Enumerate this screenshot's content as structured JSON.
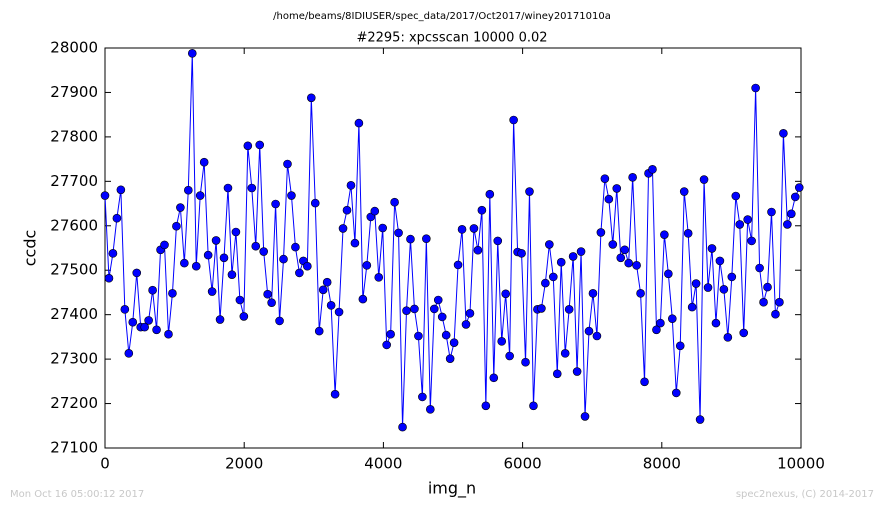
{
  "chart_data": {
    "type": "line",
    "title": "#2295: xpcsscan 10000 0.02",
    "subtitle": "/home/beams/8IDIUSER/spec_data/2017/Oct2017/winey20171010a",
    "xlabel": "img_n",
    "ylabel": "ccdc",
    "annotations": [
      "Mon Oct 16 05:00:12 2017",
      "spec2nexus, (C) 2014-2017"
    ],
    "color": "#0000ff",
    "marker_edge": "#000000",
    "xlim": [
      0,
      10000
    ],
    "xticks": [
      0,
      2000,
      4000,
      6000,
      8000,
      10000
    ],
    "ylim": [
      27100,
      28000
    ],
    "yticks": [
      27100,
      27200,
      27300,
      27400,
      27500,
      27600,
      27700,
      27800,
      27900,
      28000
    ],
    "x": [
      0,
      57,
      114,
      171,
      228,
      285,
      342,
      399,
      456,
      513,
      570,
      627,
      684,
      741,
      798,
      855,
      912,
      969,
      1026,
      1083,
      1140,
      1197,
      1254,
      1311,
      1368,
      1425,
      1482,
      1539,
      1596,
      1653,
      1710,
      1767,
      1824,
      1881,
      1938,
      1995,
      2052,
      2109,
      2166,
      2223,
      2280,
      2337,
      2394,
      2451,
      2508,
      2565,
      2622,
      2679,
      2736,
      2793,
      2850,
      2907,
      2964,
      3021,
      3078,
      3135,
      3192,
      3249,
      3306,
      3363,
      3420,
      3477,
      3534,
      3591,
      3648,
      3705,
      3762,
      3819,
      3876,
      3933,
      3990,
      4047,
      4104,
      4161,
      4218,
      4275,
      4332,
      4389,
      4446,
      4503,
      4560,
      4617,
      4674,
      4731,
      4788,
      4845,
      4902,
      4959,
      5016,
      5073,
      5130,
      5187,
      5244,
      5301,
      5358,
      5415,
      5472,
      5529,
      5586,
      5643,
      5700,
      5757,
      5814,
      5871,
      5928,
      5985,
      6042,
      6099,
      6156,
      6213,
      6270,
      6327,
      6384,
      6441,
      6498,
      6555,
      6612,
      6669,
      6726,
      6783,
      6840,
      6897,
      6954,
      7011,
      7068,
      7125,
      7182,
      7239,
      7296,
      7353,
      7410,
      7467,
      7524,
      7581,
      7638,
      7695,
      7752,
      7809,
      7866,
      7923,
      7980,
      8037,
      8094,
      8151,
      8208,
      8265,
      8322,
      8379,
      8436,
      8493,
      8550,
      8607,
      8664,
      8721,
      8778,
      8835,
      8892,
      8949,
      9006,
      9063,
      9120,
      9177,
      9234,
      9291,
      9348,
      9405,
      9462,
      9519,
      9576,
      9633,
      9690,
      9747,
      9804,
      9861,
      9918,
      9975
    ],
    "values": [
      27668,
      27482,
      27538,
      27617,
      27681,
      27412,
      27313,
      27383,
      27494,
      27372,
      27372,
      27387,
      27455,
      27366,
      27546,
      27557,
      27356,
      27448,
      27599,
      27641,
      27516,
      27680,
      27988,
      27509,
      27668,
      27743,
      27534,
      27452,
      27567,
      27389,
      27528,
      27685,
      27490,
      27586,
      27433,
      27396,
      27780,
      27685,
      27554,
      27782,
      27542,
      27446,
      27427,
      27649,
      27386,
      27525,
      27739,
      27668,
      27552,
      27494,
      27521,
      27509,
      27888,
      27651,
      27363,
      27456,
      27473,
      27421,
      27221,
      27406,
      27594,
      27635,
      27691,
      27561,
      27831,
      27435,
      27511,
      27620,
      27633,
      27484,
      27595,
      27332,
      27356,
      27653,
      27584,
      27147,
      27409,
      27570,
      27413,
      27352,
      27215,
      27571,
      27187,
      27413,
      27433,
      27395,
      27354,
      27301,
      27337,
      27512,
      27592,
      27378,
      27403,
      27594,
      27545,
      27635,
      27195,
      27671,
      27258,
      27566,
      27340,
      27447,
      27307,
      27838,
      27541,
      27538,
      27293,
      27677,
      27195,
      27412,
      27414,
      27471,
      27558,
      27485,
      27267,
      27518,
      27313,
      27412,
      27531,
      27272,
      27542,
      27171,
      27363,
      27448,
      27352,
      27585,
      27706,
      27660,
      27558,
      27684,
      27528,
      27546,
      27516,
      27709,
      27511,
      27448,
      27249,
      27718,
      27727,
      27366,
      27381,
      27580,
      27492,
      27391,
      27224,
      27330,
      27677,
      27583,
      27417,
      27470,
      27164,
      27704,
      27461,
      27549,
      27381,
      27521,
      27457,
      27349,
      27485,
      27667,
      27603,
      27359,
      27614,
      27566,
      27910,
      27505,
      27428,
      27462,
      27631,
      27401,
      27428,
      27808,
      27603,
      27627,
      27665,
      27686
    ]
  }
}
